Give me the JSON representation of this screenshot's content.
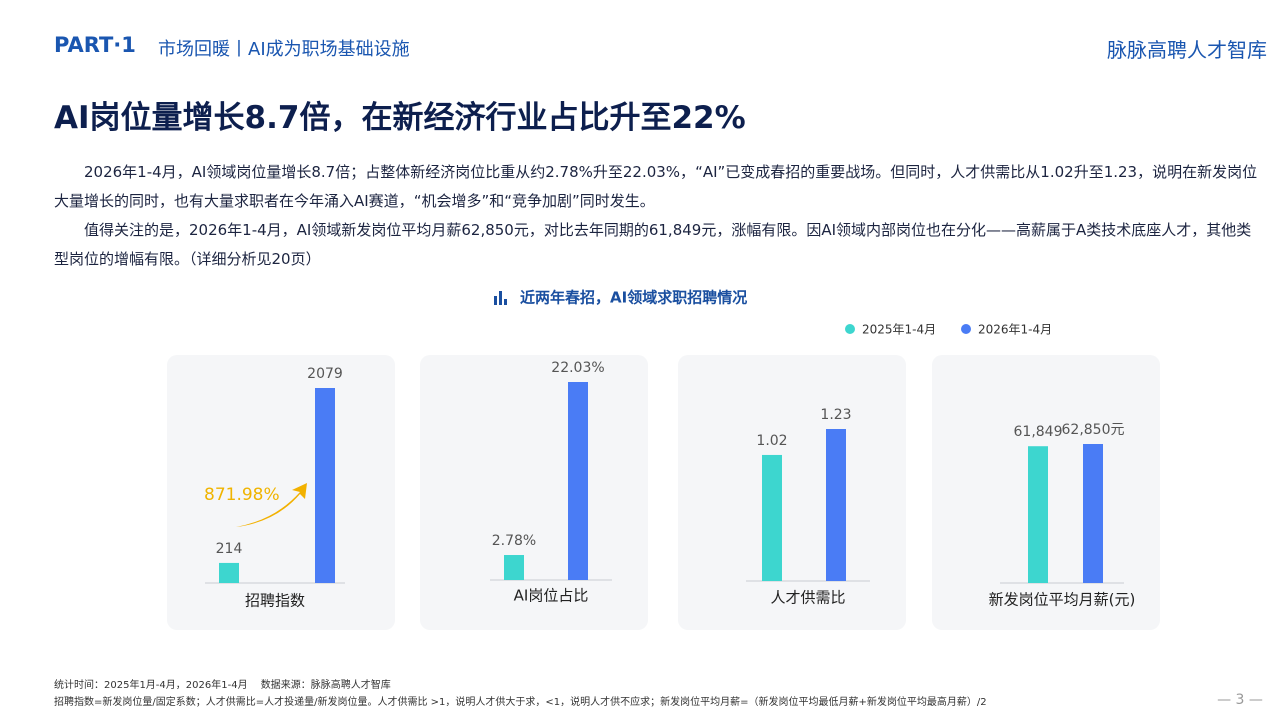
{
  "header": {
    "part": "PART·1",
    "section": "市场回暖丨AI成为职场基础设施",
    "brand": "脉脉高聘人才智库"
  },
  "title": "AI岗位量增长8.7倍，在新经济行业占比升至22%",
  "paragraphs": [
    "2026年1-4月，AI领域岗位量增长8.7倍；占整体新经济岗位比重从约2.78%升至22.03%，“AI”已变成春招的重要战场。但同时，人才供需比从1.02升至1.23，说明在新发岗位大量增长的同时，也有大量求职者在今年涌入AI赛道，“机会增多”和“竞争加剧”同时发生。",
    "值得关注的是，2026年1-4月，AI领域新发岗位平均月薪62,850元，对比去年同期的61,849元，涨幅有限。因AI领域内部岗位也在分化——高薪属于A类技术底座人才，其他类型岗位的增幅有限。（详细分析见20页）"
  ],
  "chart_group_title": "近两年春招，AI领域求职招聘情况",
  "chart_data": [
    {
      "type": "bar",
      "categories": [
        "招聘指数"
      ],
      "annotation": "871.98%",
      "series": [
        {
          "name": "2025年1-4月",
          "color": "#3dd6cf",
          "values": [
            214
          ]
        },
        {
          "name": "2026年1-4月",
          "color": "#4a7cf5",
          "values": [
            2079
          ]
        }
      ]
    },
    {
      "type": "bar",
      "categories": [
        "AI岗位占比"
      ],
      "series": [
        {
          "name": "2025年1-4月",
          "color": "#3dd6cf",
          "values": [
            2.78
          ],
          "value_labels": [
            "2.78%"
          ]
        },
        {
          "name": "2026年1-4月",
          "color": "#4a7cf5",
          "values": [
            22.03
          ],
          "value_labels": [
            "22.03%"
          ]
        }
      ]
    },
    {
      "type": "bar",
      "categories": [
        "人才供需比"
      ],
      "series": [
        {
          "name": "2025年1-4月",
          "color": "#3dd6cf",
          "values": [
            1.02
          ]
        },
        {
          "name": "2026年1-4月",
          "color": "#4a7cf5",
          "values": [
            1.23
          ]
        }
      ]
    },
    {
      "type": "bar",
      "categories": [
        "新发岗位平均月薪(元)"
      ],
      "series": [
        {
          "name": "2025年1-4月",
          "color": "#3dd6cf",
          "values": [
            61849
          ],
          "value_labels": [
            "61,849"
          ]
        },
        {
          "name": "2026年1-4月",
          "color": "#4a7cf5",
          "values": [
            62850
          ],
          "value_labels": [
            "62,850元"
          ]
        }
      ]
    }
  ],
  "footer": {
    "line1": "统计时间：2025年1月-4月，2026年1-4月　 数据来源：脉脉高聘人才智库",
    "line2": "招聘指数=新发岗位量/固定系数；人才供需比=人才投递量/新发岗位量。人才供需比 >1，说明人才供大于求，<1，说明人才供不应求；新发岗位平均月薪=（新发岗位平均最低月薪+新发岗位平均最高月薪）/2",
    "page": "— 3 —"
  }
}
